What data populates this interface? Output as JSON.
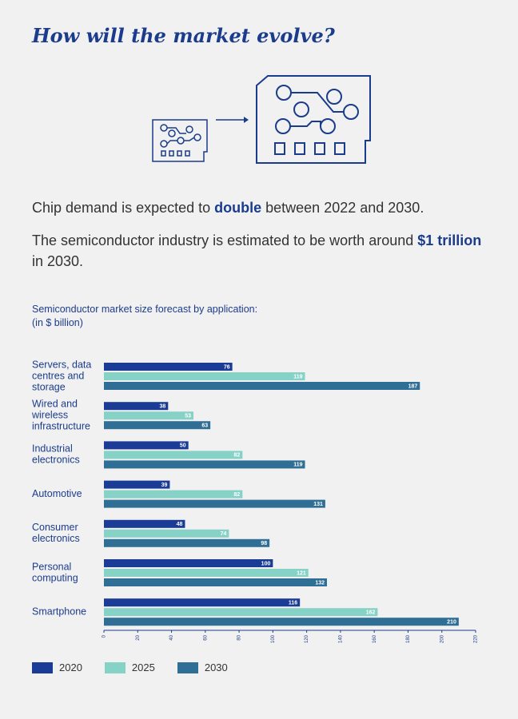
{
  "title": "How will the market evolve?",
  "text1": {
    "before": "Chip demand is expected to ",
    "highlight": "double",
    "after": " between 2022 and 2030."
  },
  "text2": {
    "before": "The semiconductor industry is estimated to be worth around ",
    "highlight": "$1 trillion",
    "after": " in 2030."
  },
  "chart_title": {
    "line1": "Semiconductor market size forecast by application:",
    "line2": "(in $ billion)"
  },
  "colors": {
    "s2020": "#1b3c96",
    "s2025": "#86d2c6",
    "s2030": "#2f6e95",
    "accent": "#1b3c8c"
  },
  "chart_data": {
    "type": "bar",
    "orientation": "horizontal",
    "title": "Semiconductor market size forecast by application:",
    "subtitle": "(in $ billion)",
    "categories": [
      [
        "Servers, data",
        "centres and",
        "storage"
      ],
      [
        "Wired and",
        "wireless",
        "infrastructure"
      ],
      [
        "Industrial",
        "electronics"
      ],
      [
        "Automotive"
      ],
      [
        "Consumer",
        "electronics"
      ],
      [
        "Personal",
        "computing"
      ],
      [
        "Smartphone"
      ]
    ],
    "series": [
      {
        "name": "2020",
        "values": [
          76,
          38,
          50,
          39,
          48,
          100,
          116
        ]
      },
      {
        "name": "2025",
        "values": [
          119,
          53,
          82,
          82,
          74,
          121,
          162
        ]
      },
      {
        "name": "2030",
        "values": [
          187,
          63,
          119,
          131,
          98,
          132,
          210
        ]
      }
    ],
    "xlim": [
      0,
      220
    ],
    "xticks": [
      0,
      20,
      40,
      60,
      80,
      100,
      120,
      140,
      160,
      180,
      200,
      220
    ],
    "grid": false,
    "legend": "bottom-left"
  }
}
